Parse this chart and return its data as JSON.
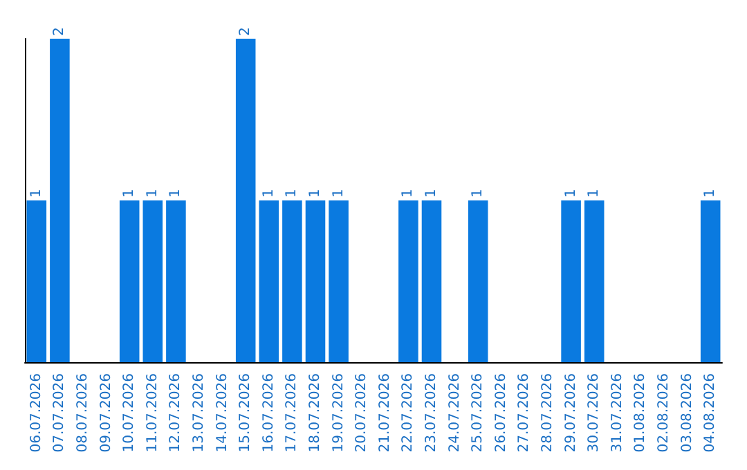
{
  "chart_data": {
    "type": "bar",
    "categories": [
      "06.07.2026",
      "07.07.2026",
      "08.07.2026",
      "09.07.2026",
      "10.07.2026",
      "11.07.2026",
      "12.07.2026",
      "13.07.2026",
      "14.07.2026",
      "15.07.2026",
      "16.07.2026",
      "17.07.2026",
      "18.07.2026",
      "19.07.2026",
      "20.07.2026",
      "21.07.2026",
      "22.07.2026",
      "23.07.2026",
      "24.07.2026",
      "25.07.2026",
      "26.07.2026",
      "27.07.2026",
      "28.07.2026",
      "29.07.2026",
      "30.07.2026",
      "31.07.2026",
      "01.08.2026",
      "02.08.2026",
      "03.08.2026",
      "04.08.2026"
    ],
    "values": [
      1,
      2,
      0,
      0,
      1,
      1,
      1,
      0,
      0,
      2,
      1,
      1,
      1,
      1,
      0,
      0,
      1,
      1,
      0,
      1,
      0,
      0,
      0,
      1,
      1,
      0,
      0,
      0,
      0,
      1
    ],
    "value_labels": [
      "1",
      "2",
      null,
      null,
      "1",
      "1",
      "1",
      null,
      null,
      "2",
      "1",
      "1",
      "1",
      "1",
      null,
      null,
      "1",
      "1",
      null,
      "1",
      null,
      null,
      null,
      "1",
      "1",
      null,
      null,
      null,
      null,
      "1"
    ],
    "color": "#0a7ae0",
    "ylim": [
      0,
      2
    ],
    "tick_labels": "x",
    "grid": false
  }
}
